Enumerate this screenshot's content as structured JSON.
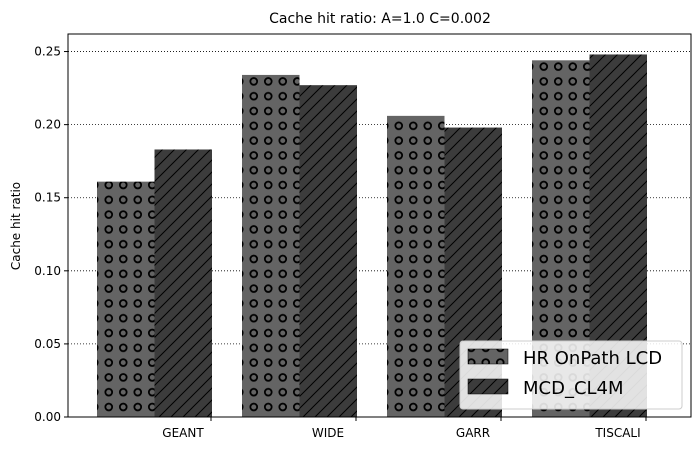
{
  "chart_data": {
    "type": "bar",
    "title": "Cache hit ratio: A=1.0 C=0.002",
    "xlabel": "",
    "ylabel": "Cache hit ratio",
    "categories": [
      "GEANT",
      "WIDE",
      "GARR",
      "TISCALI"
    ],
    "series": [
      {
        "name": "HR OnPath LCD",
        "values": [
          0.161,
          0.234,
          0.206,
          0.244
        ],
        "color": "#646464",
        "pattern": "circles"
      },
      {
        "name": "MCD_CL4M",
        "values": [
          0.183,
          0.227,
          0.198,
          0.248
        ],
        "color": "#3c3c3c",
        "pattern": "diagonal-hatch"
      }
    ],
    "ylim": [
      0,
      0.262
    ],
    "yticks": [
      "0.00",
      "0.05",
      "0.10",
      "0.15",
      "0.20",
      "0.25"
    ],
    "grid": "horizontal dotted",
    "legend_position": "lower-right"
  }
}
